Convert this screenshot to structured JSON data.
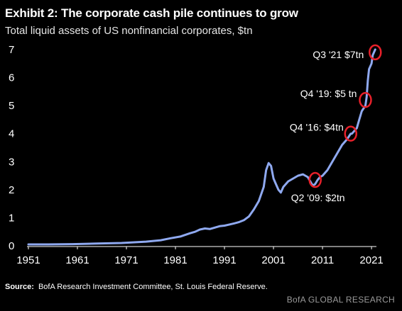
{
  "title": "Exhibit 2: The corporate cash pile continues to grow",
  "subtitle": "Total liquid assets of US nonfinancial corporates, $tn",
  "source_label": "Source:",
  "source_text": "BofA Research Investment Committee, St. Louis Federal Reserve.",
  "brand": "BofA GLOBAL RESEARCH",
  "colors": {
    "line": "#8fa9f0",
    "marker": "#e8202a",
    "background": "#000000",
    "text": "#ffffff"
  },
  "chart_data": {
    "type": "line",
    "title": "Exhibit 2: The corporate cash pile continues to grow",
    "subtitle": "Total liquid assets of US nonfinancial corporates, $tn",
    "xlabel": "",
    "ylabel": "",
    "xlim": [
      1951,
      2022
    ],
    "ylim": [
      0,
      7.2
    ],
    "x_ticks": [
      1951,
      1961,
      1971,
      1981,
      1991,
      2001,
      2011,
      2021
    ],
    "x_tick_labels": [
      "1951",
      "1961",
      "1971",
      "1981",
      "1991",
      "2001",
      "2011",
      "2021"
    ],
    "y_ticks": [
      0,
      1,
      2,
      3,
      4,
      5,
      6,
      7
    ],
    "y_tick_labels": [
      "0",
      "1",
      "2",
      "3",
      "4",
      "5",
      "6",
      "7"
    ],
    "grid": false,
    "legend": "none",
    "series": [
      {
        "x": [
          1951,
          1955,
          1960,
          1965,
          1970,
          1973,
          1975,
          1978,
          1980,
          1982,
          1984,
          1985,
          1986,
          1987,
          1988,
          1989,
          1990,
          1991,
          1992,
          1993,
          1994,
          1995,
          1996,
          1997,
          1998,
          1999,
          1999.5,
          2000,
          2000.5,
          2001,
          2001.5,
          2002,
          2002.5,
          2003,
          2004,
          2005,
          2006,
          2007,
          2007.5,
          2008,
          2008.5,
          2009,
          2009.5,
          2010,
          2010.5,
          2011,
          2012,
          2013,
          2014,
          2015,
          2016,
          2016.75,
          2017,
          2018,
          2018.5,
          2019,
          2019.75,
          2020,
          2020.25,
          2020.5,
          2021,
          2021.25,
          2021.75
        ],
        "y": [
          0.05,
          0.05,
          0.06,
          0.08,
          0.1,
          0.13,
          0.15,
          0.2,
          0.27,
          0.33,
          0.45,
          0.5,
          0.58,
          0.62,
          0.6,
          0.65,
          0.7,
          0.72,
          0.76,
          0.8,
          0.85,
          0.92,
          1.05,
          1.3,
          1.6,
          2.1,
          2.7,
          2.95,
          2.85,
          2.4,
          2.2,
          2.0,
          1.9,
          2.1,
          2.3,
          2.4,
          2.5,
          2.55,
          2.5,
          2.45,
          2.3,
          2.15,
          2.2,
          2.35,
          2.45,
          2.5,
          2.7,
          3.0,
          3.3,
          3.6,
          3.8,
          4.0,
          4.0,
          4.2,
          4.5,
          4.8,
          5.0,
          5.3,
          5.9,
          6.3,
          6.5,
          6.8,
          7.0
        ]
      }
    ],
    "annotations": [
      {
        "label": "Q2 '09: $2tn",
        "x": 2009.5,
        "y": 2.35
      },
      {
        "label": "Q4 '16: $4tn",
        "x": 2016.75,
        "y": 4.0
      },
      {
        "label": "Q4 '19: $5 tn",
        "x": 2019.75,
        "y": 5.2
      },
      {
        "label": "Q3 '21 $7tn",
        "x": 2021.75,
        "y": 6.9
      }
    ]
  }
}
